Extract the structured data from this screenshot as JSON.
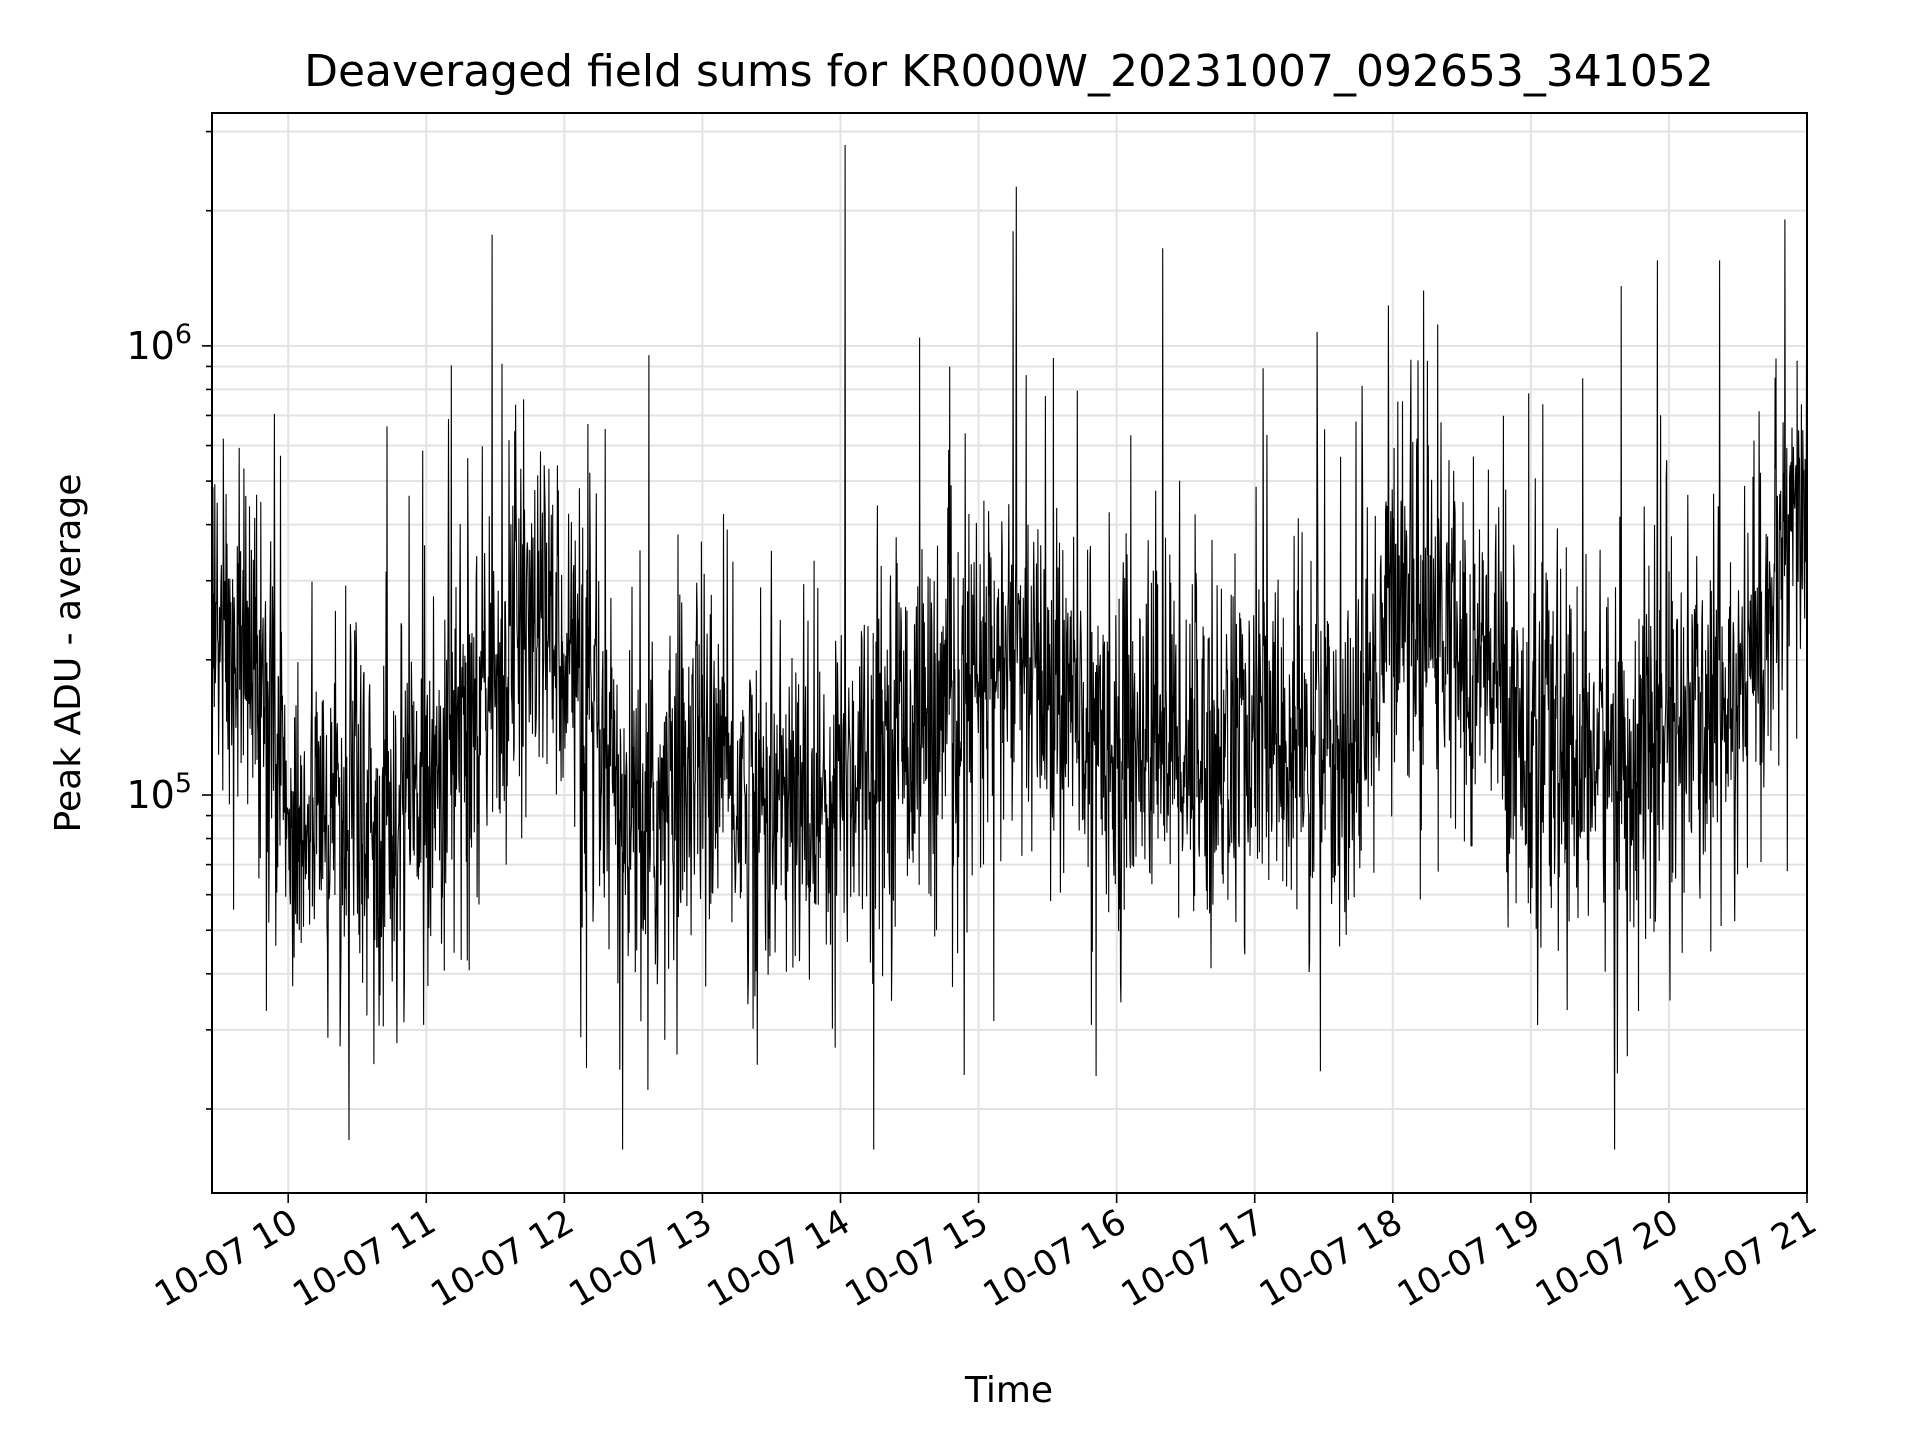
{
  "chart_data": {
    "type": "line",
    "title": "Deaveraged field sums for KR000W_20231007_092653_341052",
    "xlabel": "Time",
    "ylabel": "Peak ADU - average",
    "xscale": "time",
    "yscale": "log",
    "xlim": [
      "2023-10-07 09:26:53",
      "2023-10-07 21:00:00"
    ],
    "ylim": [
      13000,
      3300000
    ],
    "grid": true,
    "line_color": "#000000",
    "x_ticks": [
      {
        "value": "2023-10-07 10:00",
        "label": "10-07 10"
      },
      {
        "value": "2023-10-07 11:00",
        "label": "10-07 11"
      },
      {
        "value": "2023-10-07 12:00",
        "label": "10-07 12"
      },
      {
        "value": "2023-10-07 13:00",
        "label": "10-07 13"
      },
      {
        "value": "2023-10-07 14:00",
        "label": "10-07 14"
      },
      {
        "value": "2023-10-07 15:00",
        "label": "10-07 15"
      },
      {
        "value": "2023-10-07 16:00",
        "label": "10-07 16"
      },
      {
        "value": "2023-10-07 17:00",
        "label": "10-07 17"
      },
      {
        "value": "2023-10-07 18:00",
        "label": "10-07 18"
      },
      {
        "value": "2023-10-07 19:00",
        "label": "10-07 19"
      },
      {
        "value": "2023-10-07 20:00",
        "label": "10-07 20"
      },
      {
        "value": "2023-10-07 21:00",
        "label": "10-07 21"
      }
    ],
    "y_ticks": [
      {
        "value": 100000,
        "base": "10",
        "exp": "5"
      },
      {
        "value": 1000000,
        "base": "10",
        "exp": "6"
      }
    ],
    "series": [
      {
        "x": [
          "2023-10-07 09:30",
          "2023-10-07 09:45",
          "2023-10-07 10:00",
          "2023-10-07 10:15",
          "2023-10-07 10:30",
          "2023-10-07 10:45",
          "2023-10-07 11:00",
          "2023-10-07 11:15",
          "2023-10-07 11:30",
          "2023-10-07 11:45",
          "2023-10-07 12:00",
          "2023-10-07 12:15",
          "2023-10-07 12:30",
          "2023-10-07 12:45",
          "2023-10-07 13:00",
          "2023-10-07 13:15",
          "2023-10-07 13:30",
          "2023-10-07 13:45",
          "2023-10-07 14:00",
          "2023-10-07 14:15",
          "2023-10-07 14:30",
          "2023-10-07 14:45",
          "2023-10-07 15:00",
          "2023-10-07 15:15",
          "2023-10-07 15:30",
          "2023-10-07 15:45",
          "2023-10-07 16:00",
          "2023-10-07 16:15",
          "2023-10-07 16:30",
          "2023-10-07 16:45",
          "2023-10-07 17:00",
          "2023-10-07 17:15",
          "2023-10-07 17:30",
          "2023-10-07 17:45",
          "2023-10-07 18:00",
          "2023-10-07 18:15",
          "2023-10-07 18:30",
          "2023-10-07 18:45",
          "2023-10-07 19:00",
          "2023-10-07 19:15",
          "2023-10-07 19:30",
          "2023-10-07 19:45",
          "2023-10-07 20:00",
          "2023-10-07 20:15",
          "2023-10-07 20:30",
          "2023-10-07 20:45",
          "2023-10-07 21:00"
        ],
        "y": [
          230000,
          200000,
          85000,
          90000,
          95000,
          90000,
          110000,
          140000,
          180000,
          240000,
          230000,
          120000,
          80000,
          95000,
          140000,
          100000,
          95000,
          90000,
          110000,
          130000,
          150000,
          150000,
          180000,
          200000,
          170000,
          150000,
          140000,
          135000,
          130000,
          125000,
          135000,
          125000,
          130000,
          120000,
          300000,
          260000,
          210000,
          180000,
          130000,
          120000,
          125000,
          120000,
          140000,
          150000,
          170000,
          250000,
          450000
        ]
      }
    ],
    "annotations": [
      {
        "x": "2023-10-07 14:02",
        "y": 2800000
      },
      {
        "x": "2023-10-07 15:15",
        "y": 1800000
      },
      {
        "x": "2023-10-07 16:20",
        "y": 1650000
      },
      {
        "x": "2023-10-07 20:22",
        "y": 1550000
      },
      {
        "x": "2023-10-07 19:55",
        "y": 1550000
      }
    ]
  }
}
